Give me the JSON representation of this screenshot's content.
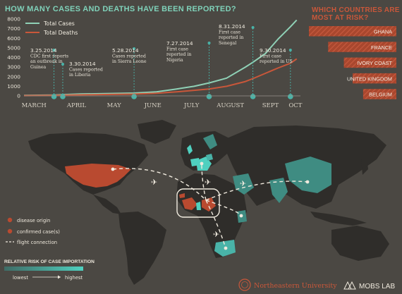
{
  "title": "HOW MANY CASES AND DEATHS HAVE BEEN REPORTED?",
  "risk_title_line1": "WHICH COUNTRIES ARE",
  "risk_title_line2": "MOST AT RISK?",
  "colors": {
    "background": "#4b4843",
    "total_cases": "#8fd1b6",
    "total_deaths": "#c9573a",
    "marker": "#49b3a8",
    "land": "#2f2d2a",
    "origin": "#b94a30"
  },
  "chart_data": {
    "type": "line",
    "title": "HOW MANY CASES AND DEATHS HAVE BEEN REPORTED?",
    "xlabel": "",
    "ylabel": "",
    "ylim": [
      0,
      8000
    ],
    "yticks": [
      0,
      1000,
      2000,
      3000,
      4000,
      5000,
      6000,
      7000,
      8000
    ],
    "xlim": [
      "2014-03-01",
      "2014-10-08"
    ],
    "month_labels": [
      {
        "label": "MARCH",
        "date": "2014-03-09"
      },
      {
        "label": "APRIL",
        "date": "2014-04-12"
      },
      {
        "label": "MAY",
        "date": "2014-05-12"
      },
      {
        "label": "JUNE",
        "date": "2014-06-12"
      },
      {
        "label": "JULY",
        "date": "2014-07-13"
      },
      {
        "label": "AUGUST",
        "date": "2014-08-13"
      },
      {
        "label": "SEPT",
        "date": "2014-09-14"
      },
      {
        "label": "OCT",
        "date": "2014-10-04"
      }
    ],
    "series": [
      {
        "name": "Total Cases",
        "color": "#8fd1b6",
        "points": [
          [
            "2014-03-01",
            50
          ],
          [
            "2014-03-25",
            85
          ],
          [
            "2014-04-15",
            200
          ],
          [
            "2014-05-05",
            240
          ],
          [
            "2014-05-28",
            290
          ],
          [
            "2014-06-15",
            420
          ],
          [
            "2014-07-01",
            720
          ],
          [
            "2014-07-15",
            1000
          ],
          [
            "2014-07-27",
            1350
          ],
          [
            "2014-08-10",
            1850
          ],
          [
            "2014-08-25",
            3000
          ],
          [
            "2014-08-31",
            3500
          ],
          [
            "2014-09-10",
            4400
          ],
          [
            "2014-09-20",
            5900
          ],
          [
            "2014-09-30",
            7200
          ],
          [
            "2014-10-05",
            7900
          ]
        ]
      },
      {
        "name": "Total Deaths",
        "color": "#c9573a",
        "points": [
          [
            "2014-03-01",
            30
          ],
          [
            "2014-03-25",
            60
          ],
          [
            "2014-04-15",
            110
          ],
          [
            "2014-05-05",
            150
          ],
          [
            "2014-05-28",
            190
          ],
          [
            "2014-06-15",
            280
          ],
          [
            "2014-07-01",
            420
          ],
          [
            "2014-07-15",
            580
          ],
          [
            "2014-07-27",
            720
          ],
          [
            "2014-08-10",
            1000
          ],
          [
            "2014-08-25",
            1500
          ],
          [
            "2014-08-31",
            1800
          ],
          [
            "2014-09-10",
            2350
          ],
          [
            "2014-09-20",
            2900
          ],
          [
            "2014-09-30",
            3400
          ],
          [
            "2014-10-05",
            3850
          ]
        ]
      }
    ]
  },
  "annotations": [
    {
      "date": "2014-03-25",
      "label": "3.25.2014",
      "lines": [
        "CDC first reports",
        "an outbreak in",
        "Guinea"
      ]
    },
    {
      "date": "2014-04-01",
      "label": "3.30.2014",
      "lines": [
        "Cases reported",
        "in Liberia"
      ]
    },
    {
      "date": "2014-05-28",
      "label": "5.28.2014",
      "lines": [
        "Cases reported",
        "in Sierra Leone"
      ]
    },
    {
      "date": "2014-07-27",
      "label": "7.27.2014",
      "lines": [
        "First case",
        "reported in",
        "Nigeria"
      ]
    },
    {
      "date": "2014-08-31",
      "label": "8.31.2014",
      "lines": [
        "First case",
        "reported in",
        "Senegal"
      ]
    },
    {
      "date": "2014-09-30",
      "label": "9.30.2014",
      "lines": [
        "First case",
        "reported in US"
      ]
    }
  ],
  "risk_countries": [
    {
      "name": "GHANA",
      "risk": 1.0
    },
    {
      "name": "FRANCE",
      "risk": 0.78
    },
    {
      "name": "IVORY COAST",
      "risk": 0.6
    },
    {
      "name": "UNITED KINGDOM",
      "risk": 0.5
    },
    {
      "name": "BELGIUM",
      "risk": 0.38
    }
  ],
  "map_legend": {
    "disease_origin": "disease origin",
    "confirmed_cases": "confirmed case(s)",
    "flight_connection": "flight connection",
    "relative_risk_title": "RELATIVE RISK OF CASE IMPORTATION",
    "lowest": "lowest",
    "highest": "highest"
  },
  "footer": {
    "university": "Northeastern University",
    "lab": "MOBS LAB"
  }
}
